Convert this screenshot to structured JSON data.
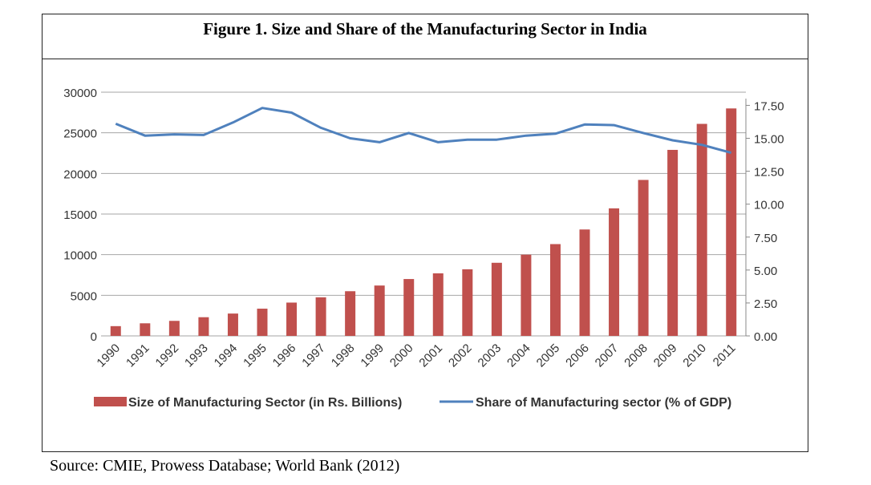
{
  "figure": {
    "title": "Figure 1. Size and Share of the Manufacturing Sector in India",
    "source": "Source: CMIE, Prowess Database; World Bank (2012)"
  },
  "chart_data": {
    "type": "bar",
    "categories": [
      "1990",
      "1991",
      "1992",
      "1993",
      "1994",
      "1995",
      "1996",
      "1997",
      "1998",
      "1999",
      "2000",
      "2001",
      "2002",
      "2003",
      "2004",
      "2005",
      "2006",
      "2007",
      "2008",
      "2009",
      "2010",
      "2011"
    ],
    "series": [
      {
        "name": "Size of Manufacturing Sector (in Rs. Billions)",
        "type": "bar",
        "axis": "left",
        "color": "#c0504d",
        "values": [
          1200,
          1550,
          1850,
          2300,
          2750,
          3350,
          4100,
          4750,
          5500,
          6200,
          7000,
          7700,
          8200,
          9000,
          10000,
          11300,
          13100,
          15700,
          19200,
          22900,
          26100,
          28000
        ]
      },
      {
        "name": "Share of Manufacturing sector (% of GDP)",
        "type": "line",
        "axis": "right",
        "color": "#4f81bd",
        "values": [
          16.1,
          15.2,
          15.3,
          15.25,
          16.2,
          17.3,
          16.95,
          15.8,
          15.0,
          14.7,
          15.4,
          14.7,
          14.9,
          14.9,
          15.2,
          15.35,
          16.05,
          16.0,
          15.4,
          14.85,
          14.5,
          13.9
        ]
      }
    ],
    "y_left": {
      "min": 0,
      "max": 30000,
      "ticks": [
        "0",
        "5000",
        "10000",
        "15000",
        "20000",
        "25000",
        "30000"
      ]
    },
    "y_right": {
      "min": 0,
      "max": 18.5,
      "ticks": [
        "0.00",
        "2.50",
        "5.00",
        "7.50",
        "10.00",
        "12.50",
        "15.00",
        "17.50"
      ]
    },
    "grid": true,
    "legend_position": "bottom"
  }
}
